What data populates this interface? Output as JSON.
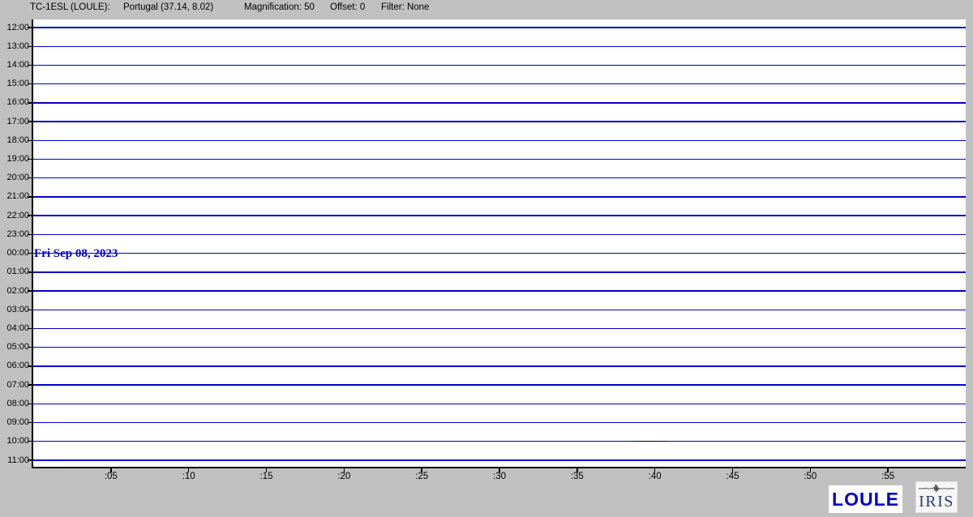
{
  "header": {
    "station": "TC-1ESL (LOULE):",
    "location": "Portugal (37.14, 8.02)",
    "magnification": "Magnification: 50",
    "offset": "Offset: 0",
    "filter": "Filter: None"
  },
  "plot": {
    "hour_labels": [
      "12:00",
      "13:00",
      "14:00",
      "15:00",
      "16:00",
      "17:00",
      "18:00",
      "19:00",
      "20:00",
      "21:00",
      "22:00",
      "23:00",
      "00:00",
      "01:00",
      "02:00",
      "03:00",
      "04:00",
      "05:00",
      "06:00",
      "07:00",
      "08:00",
      "09:00",
      "10:00",
      "11:00"
    ],
    "minute_labels": [
      ":05",
      ":10",
      ":15",
      ":20",
      ":25",
      ":30",
      ":35",
      ":40",
      ":45",
      ":50",
      ":55"
    ],
    "date_label": "Fri Sep 08, 2023",
    "date_row": "00:00",
    "gap": {
      "row": "10:00",
      "start_minute": 38.6,
      "end_minute": 40.8
    }
  },
  "logos": {
    "station_button": "LOULE",
    "iris_label": "IRIS",
    "iris_icon": "seismogram-waveform-icon"
  },
  "colors": {
    "background": "#c0c0c0",
    "plot_background": "#ffffff",
    "trace": "#0000cc",
    "gap_segment": "#000000",
    "date_text": "#0000cc",
    "loule_logo_text": "#0000cc",
    "iris_logo_text": "#2a3c6e"
  },
  "chart_data": {
    "type": "line",
    "chart_kind": "helicorder - 24-hour seismogram drum plot, one row per hour",
    "title": "TC-1ESL (LOULE): Portugal (37.14, 8.02)",
    "subtitle": "Magnification: 50  Offset: 0  Filter: None",
    "x_axis": {
      "unit": "minutes past each hour",
      "range": [
        0,
        60
      ],
      "tick_labels": [
        ":05",
        ":10",
        ":15",
        ":20",
        ":25",
        ":30",
        ":35",
        ":40",
        ":45",
        ":50",
        ":55"
      ]
    },
    "y_axis": {
      "rows_top_to_bottom": [
        "12:00",
        "13:00",
        "14:00",
        "15:00",
        "16:00",
        "17:00",
        "18:00",
        "19:00",
        "20:00",
        "21:00",
        "22:00",
        "23:00",
        "00:00",
        "01:00",
        "02:00",
        "03:00",
        "04:00",
        "05:00",
        "06:00",
        "07:00",
        "08:00",
        "09:00",
        "10:00",
        "11:00"
      ],
      "date_boundary": {
        "at_row": "00:00",
        "label": "Fri Sep 08, 2023"
      }
    },
    "series": [
      {
        "name": "all 24 hourly traces",
        "amplitude": 0,
        "description": "completely flat lines - no visible seismic signal at this magnification"
      }
    ],
    "annotations": [
      {
        "type": "black-segment",
        "row": "10:00",
        "start_minute": 38.6,
        "end_minute": 40.8,
        "color": "#000000"
      }
    ],
    "grid": false,
    "legend": false,
    "trace_color": "#0000cc"
  }
}
